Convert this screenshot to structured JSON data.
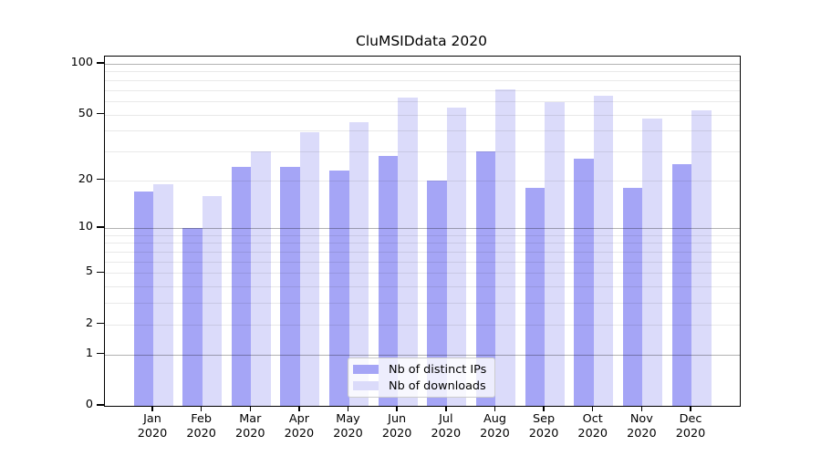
{
  "title": "CluMSIDdata 2020",
  "colors": {
    "bar_ips": "#a5a5f6",
    "bar_downloads": "#dbdbfa",
    "grid_major": "rgba(0,0,0,0.30)",
    "grid_minor": "rgba(0,0,0,0.085)",
    "spine": "#000000",
    "legend_bg": "rgba(255,255,255,0.8)",
    "legend_border": "#cccccc"
  },
  "legend": {
    "items": [
      {
        "label": "Nb of distinct IPs",
        "color": "#a5a5f6"
      },
      {
        "label": "Nb of downloads",
        "color": "#dbdbfa"
      }
    ]
  },
  "y_axis": {
    "tick_labels": [
      "0",
      "1",
      "2",
      "5",
      "10",
      "20",
      "50",
      "100"
    ]
  },
  "chart_data": {
    "type": "bar",
    "title": "CluMSIDdata 2020",
    "categories": [
      "Jan 2020",
      "Feb 2020",
      "Mar 2020",
      "Apr 2020",
      "May 2020",
      "Jun 2020",
      "Jul 2020",
      "Aug 2020",
      "Sep 2020",
      "Oct 2020",
      "Nov 2020",
      "Dec 2020"
    ],
    "series": [
      {
        "name": "Nb of distinct IPs",
        "color": "#a5a5f6",
        "values": [
          17,
          10,
          24,
          24,
          23,
          28,
          20,
          30,
          18,
          27,
          18,
          25
        ]
      },
      {
        "name": "Nb of downloads",
        "color": "#dbdbfa",
        "values": [
          19,
          16,
          30,
          39,
          45,
          63,
          55,
          71,
          59,
          65,
          47,
          53
        ]
      }
    ],
    "xlabel": "",
    "ylabel": "",
    "yscale": "log1p",
    "ylim": [
      0,
      110
    ],
    "yticks": [
      0,
      1,
      2,
      5,
      10,
      20,
      50,
      100
    ],
    "grid_major_values": [
      1,
      10,
      100
    ],
    "grid_minor_values": [
      2,
      3,
      4,
      5,
      6,
      7,
      8,
      9,
      20,
      30,
      40,
      50,
      60,
      70,
      80,
      90
    ],
    "grid": "on",
    "legend_position": "lower center"
  }
}
